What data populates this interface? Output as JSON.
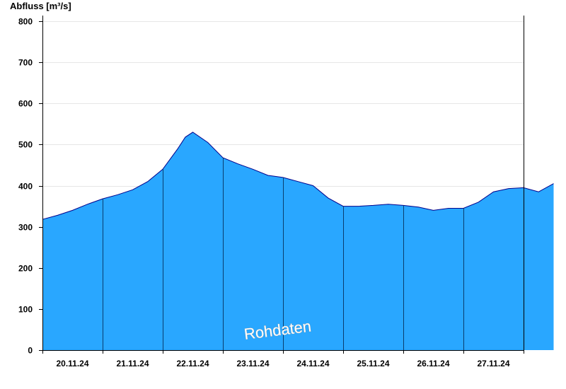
{
  "chart_data": {
    "type": "area",
    "title": "",
    "ylabel": "Abfluss [m³/s]",
    "xlabel": "",
    "ylim": [
      0,
      820
    ],
    "yticks": [
      0,
      100,
      200,
      300,
      400,
      500,
      600,
      700,
      800
    ],
    "x_tick_labels": [
      "20.11.24",
      "21.11.24",
      "22.11.24",
      "23.11.24",
      "24.11.24",
      "25.11.24",
      "26.11.24",
      "27.11.24"
    ],
    "x_range": [
      "19.11.24 12:00",
      "27.11.24 12:00"
    ],
    "grid": "horizontal",
    "fill_color": "#29a7ff",
    "line_color": "#00008b",
    "watermark": "Rohdaten",
    "series": [
      {
        "x": [
          "19.11.24 12:00",
          "19.11.24 18:00",
          "20.11.24 00:00",
          "20.11.24 06:00",
          "20.11.24 12:00",
          "20.11.24 18:00",
          "21.11.24 00:00",
          "21.11.24 06:00",
          "21.11.24 12:00",
          "21.11.24 18:00",
          "21.11.24 21:00",
          "22.11.24 00:00",
          "22.11.24 06:00",
          "22.11.24 12:00",
          "22.11.24 18:00",
          "23.11.24 00:00",
          "23.11.24 06:00",
          "23.11.24 12:00",
          "23.11.24 18:00",
          "24.11.24 00:00",
          "24.11.24 06:00",
          "24.11.24 12:00",
          "24.11.24 18:00",
          "25.11.24 00:00",
          "25.11.24 06:00",
          "25.11.24 12:00",
          "25.11.24 18:00",
          "26.11.24 00:00",
          "26.11.24 06:00",
          "26.11.24 12:00",
          "26.11.24 18:00",
          "27.11.24 00:00",
          "27.11.24 06:00",
          "27.11.24 12:00",
          "27.11.24 18:00",
          "28.11.24 00:00"
        ],
        "values": [
          318,
          328,
          340,
          355,
          368,
          378,
          390,
          410,
          440,
          490,
          518,
          530,
          505,
          468,
          453,
          440,
          425,
          420,
          410,
          400,
          370,
          350,
          350,
          352,
          355,
          352,
          348,
          340,
          345,
          345,
          360,
          385,
          393,
          395,
          385,
          405
        ]
      }
    ]
  }
}
